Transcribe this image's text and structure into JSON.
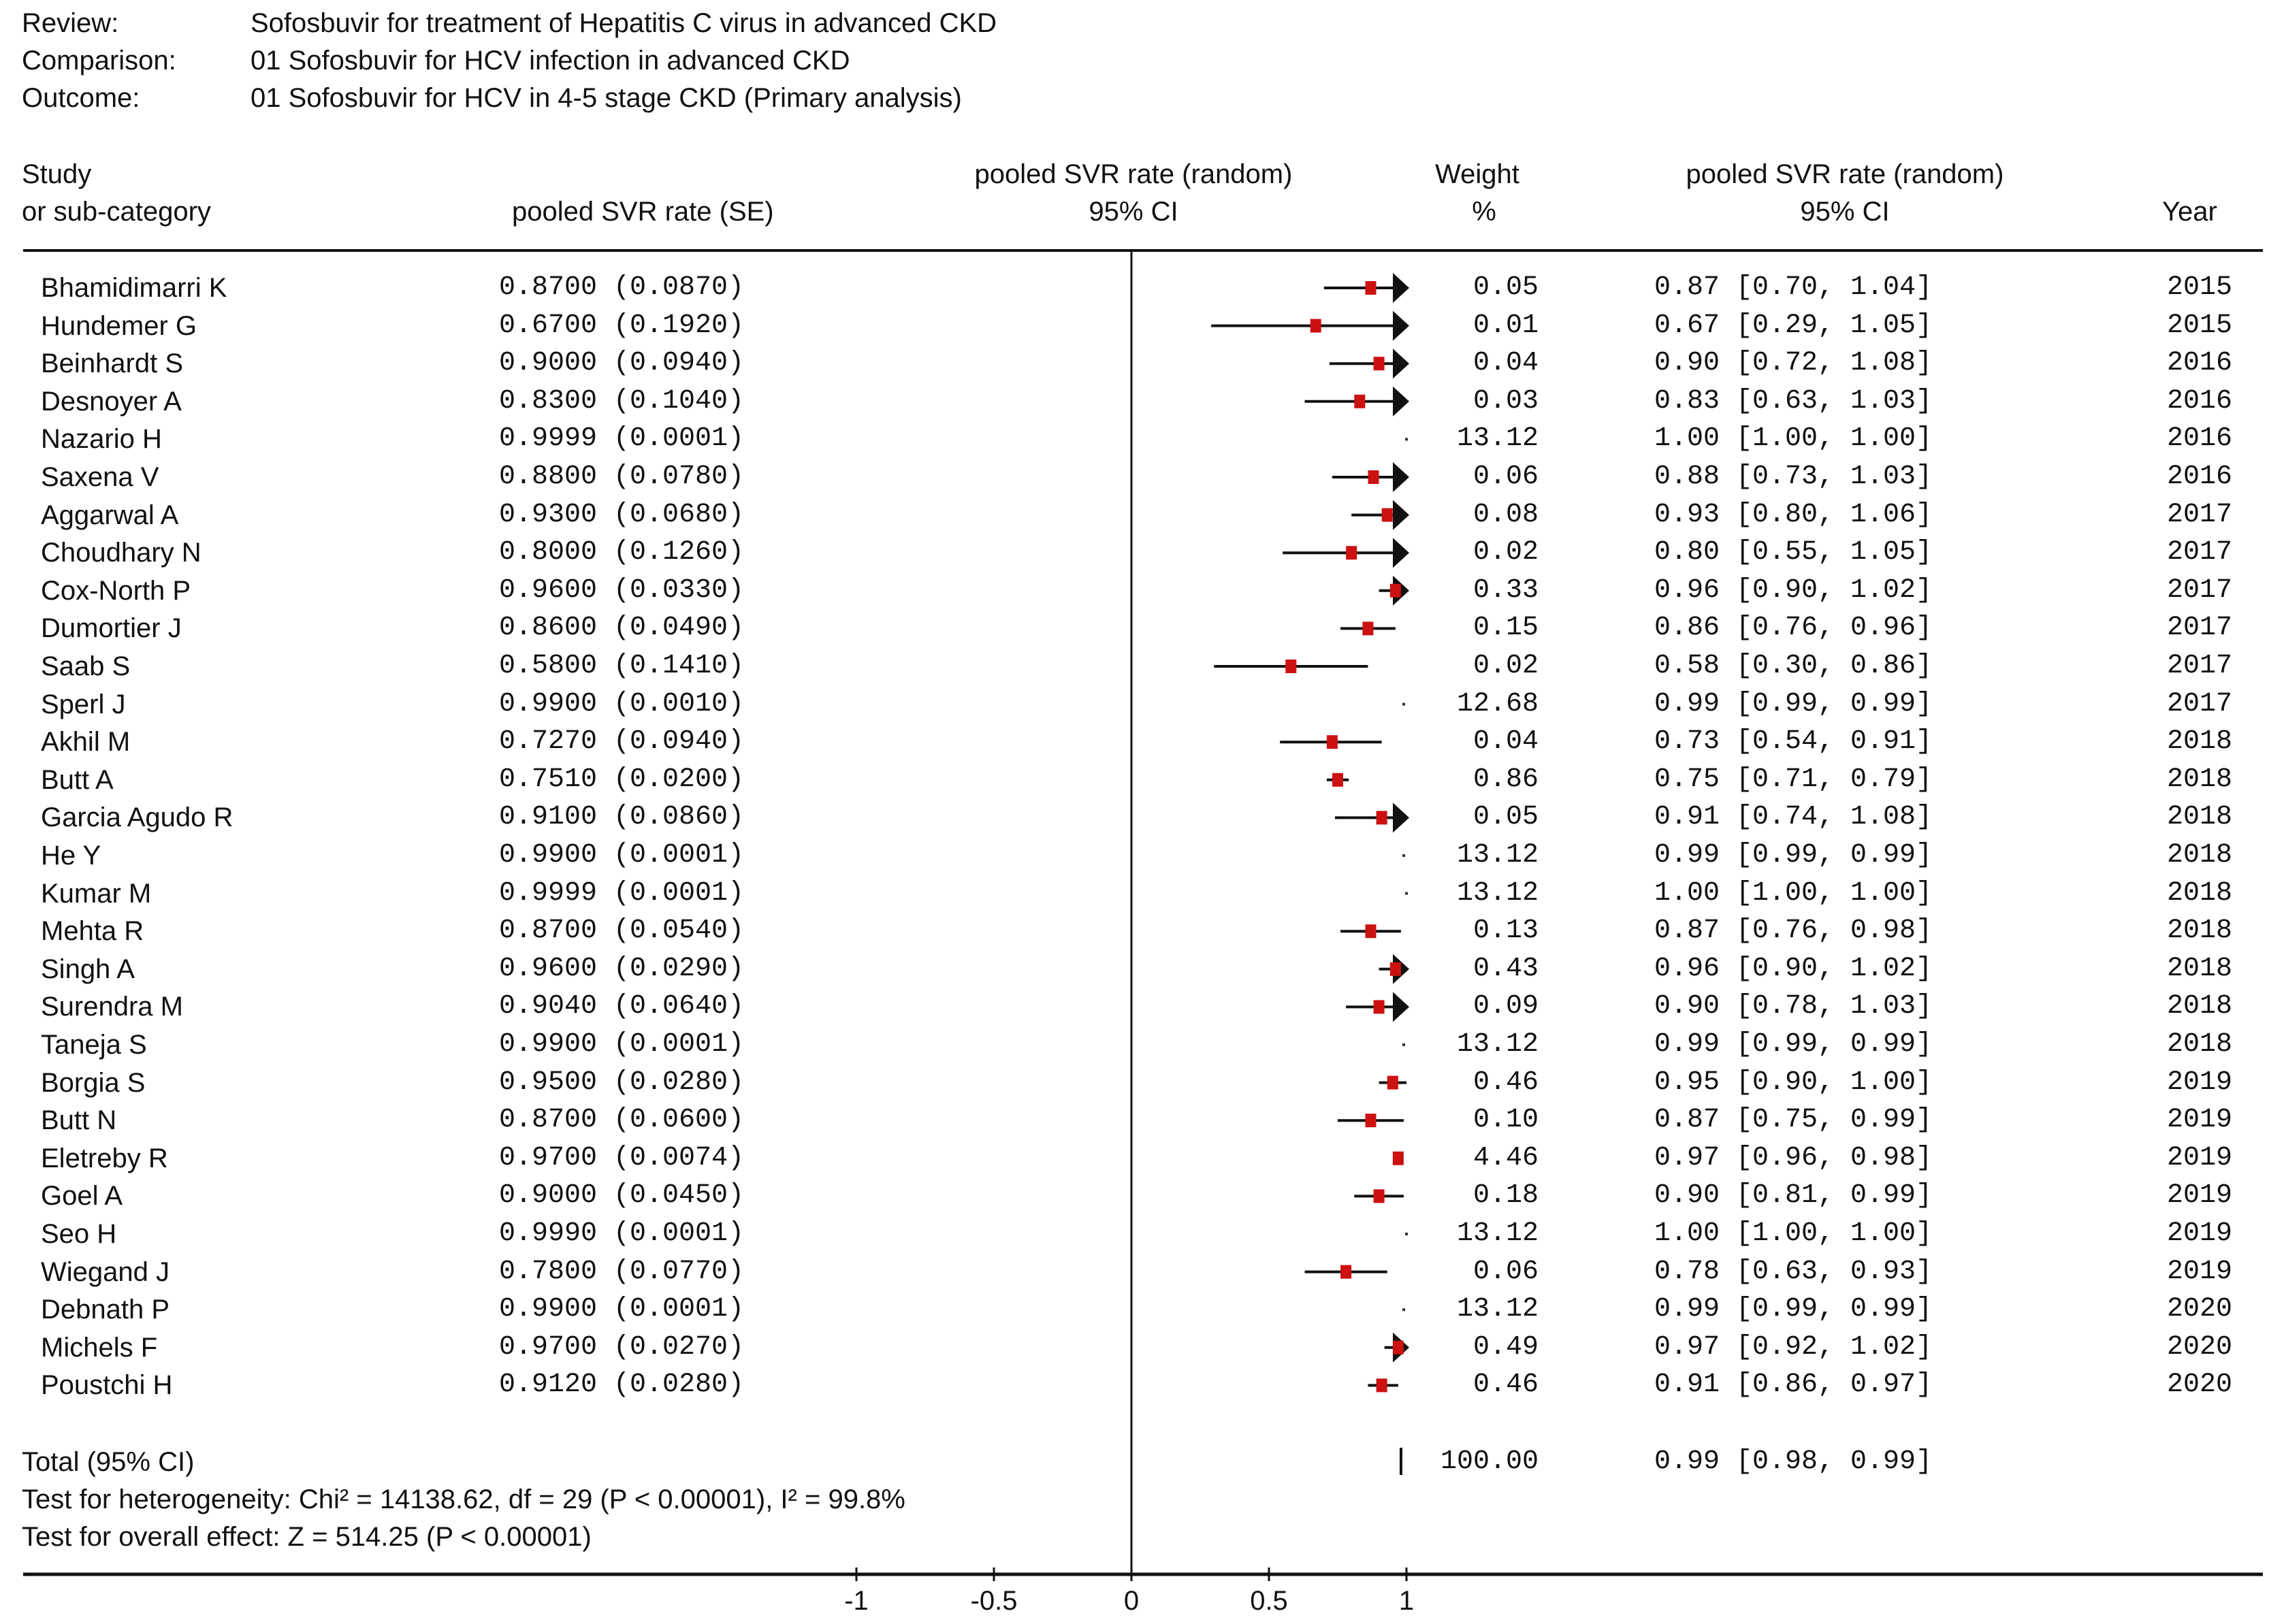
{
  "header": {
    "review_label": "Review:",
    "review": "Sofosbuvir for treatment of Hepatitis C virus in advanced CKD",
    "comparison_label": "Comparison:",
    "comparison": "01 Sofosbuvir for HCV infection in advanced CKD",
    "outcome_label": "Outcome:",
    "outcome": "01 Sofosbuvir for HCV in 4-5 stage CKD (Primary analysis)"
  },
  "columns": {
    "study1": "Study",
    "study2": "or sub-category",
    "se": "pooled SVR rate (SE)",
    "plot1": "pooled SVR rate (random)",
    "plot2": "95% CI",
    "weight1": "Weight",
    "weight2": "%",
    "ci1": "pooled SVR rate (random)",
    "ci2": "95% CI",
    "year": "Year"
  },
  "chart_data": {
    "type": "forest",
    "xlim": [
      -1,
      1
    ],
    "x_ticks": [
      "-1",
      "-0.5",
      "0",
      "0.5",
      "1"
    ],
    "x_tick_values": [
      -1,
      -0.5,
      0,
      0.5,
      1
    ],
    "studies": [
      {
        "name": "Bhamidimarri K",
        "se_text": "0.8700  (0.0870)",
        "est": 0.87,
        "lo": 0.7,
        "hi": 1.04,
        "weight": "0.05",
        "ci_text": "0.87 [0.70, 1.04]",
        "year": "2015"
      },
      {
        "name": "Hundemer G",
        "se_text": "0.6700  (0.1920)",
        "est": 0.67,
        "lo": 0.29,
        "hi": 1.05,
        "weight": "0.01",
        "ci_text": "0.67 [0.29, 1.05]",
        "year": "2015"
      },
      {
        "name": "Beinhardt S",
        "se_text": "0.9000  (0.0940)",
        "est": 0.9,
        "lo": 0.72,
        "hi": 1.08,
        "weight": "0.04",
        "ci_text": "0.90 [0.72, 1.08]",
        "year": "2016"
      },
      {
        "name": "Desnoyer A",
        "se_text": "0.8300  (0.1040)",
        "est": 0.83,
        "lo": 0.63,
        "hi": 1.03,
        "weight": "0.03",
        "ci_text": "0.83 [0.63, 1.03]",
        "year": "2016"
      },
      {
        "name": "Nazario H",
        "se_text": "0.9999  (0.0001)",
        "est": 1.0,
        "lo": 1.0,
        "hi": 1.0,
        "weight": "13.12",
        "ci_text": "1.00 [1.00, 1.00]",
        "year": "2016"
      },
      {
        "name": "Saxena V",
        "se_text": "0.8800  (0.0780)",
        "est": 0.88,
        "lo": 0.73,
        "hi": 1.03,
        "weight": "0.06",
        "ci_text": "0.88 [0.73, 1.03]",
        "year": "2016"
      },
      {
        "name": "Aggarwal A",
        "se_text": "0.9300  (0.0680)",
        "est": 0.93,
        "lo": 0.8,
        "hi": 1.06,
        "weight": "0.08",
        "ci_text": "0.93 [0.80, 1.06]",
        "year": "2017"
      },
      {
        "name": "Choudhary N",
        "se_text": "0.8000  (0.1260)",
        "est": 0.8,
        "lo": 0.55,
        "hi": 1.05,
        "weight": "0.02",
        "ci_text": "0.80 [0.55, 1.05]",
        "year": "2017"
      },
      {
        "name": "Cox-North P",
        "se_text": "0.9600  (0.0330)",
        "est": 0.96,
        "lo": 0.9,
        "hi": 1.02,
        "weight": "0.33",
        "ci_text": "0.96 [0.90, 1.02]",
        "year": "2017"
      },
      {
        "name": "Dumortier J",
        "se_text": "0.8600  (0.0490)",
        "est": 0.86,
        "lo": 0.76,
        "hi": 0.96,
        "weight": "0.15",
        "ci_text": "0.86 [0.76, 0.96]",
        "year": "2017"
      },
      {
        "name": "Saab S",
        "se_text": "0.5800  (0.1410)",
        "est": 0.58,
        "lo": 0.3,
        "hi": 0.86,
        "weight": "0.02",
        "ci_text": "0.58 [0.30, 0.86]",
        "year": "2017"
      },
      {
        "name": "Sperl J",
        "se_text": "0.9900  (0.0010)",
        "est": 0.99,
        "lo": 0.99,
        "hi": 0.99,
        "weight": "12.68",
        "ci_text": "0.99 [0.99, 0.99]",
        "year": "2017"
      },
      {
        "name": "Akhil M",
        "se_text": "0.7270  (0.0940)",
        "est": 0.73,
        "lo": 0.54,
        "hi": 0.91,
        "weight": "0.04",
        "ci_text": "0.73 [0.54, 0.91]",
        "year": "2018"
      },
      {
        "name": "Butt A",
        "se_text": "0.7510  (0.0200)",
        "est": 0.75,
        "lo": 0.71,
        "hi": 0.79,
        "weight": "0.86",
        "ci_text": "0.75 [0.71, 0.79]",
        "year": "2018"
      },
      {
        "name": "Garcia Agudo R",
        "se_text": "0.9100  (0.0860)",
        "est": 0.91,
        "lo": 0.74,
        "hi": 1.08,
        "weight": "0.05",
        "ci_text": "0.91 [0.74, 1.08]",
        "year": "2018"
      },
      {
        "name": "He Y",
        "se_text": "0.9900  (0.0001)",
        "est": 0.99,
        "lo": 0.99,
        "hi": 0.99,
        "weight": "13.12",
        "ci_text": "0.99 [0.99, 0.99]",
        "year": "2018"
      },
      {
        "name": "Kumar M",
        "se_text": "0.9999  (0.0001)",
        "est": 1.0,
        "lo": 1.0,
        "hi": 1.0,
        "weight": "13.12",
        "ci_text": "1.00 [1.00, 1.00]",
        "year": "2018"
      },
      {
        "name": "Mehta R",
        "se_text": "0.8700  (0.0540)",
        "est": 0.87,
        "lo": 0.76,
        "hi": 0.98,
        "weight": "0.13",
        "ci_text": "0.87 [0.76, 0.98]",
        "year": "2018"
      },
      {
        "name": "Singh A",
        "se_text": "0.9600  (0.0290)",
        "est": 0.96,
        "lo": 0.9,
        "hi": 1.02,
        "weight": "0.43",
        "ci_text": "0.96 [0.90, 1.02]",
        "year": "2018"
      },
      {
        "name": "Surendra M",
        "se_text": "0.9040  (0.0640)",
        "est": 0.9,
        "lo": 0.78,
        "hi": 1.03,
        "weight": "0.09",
        "ci_text": "0.90 [0.78, 1.03]",
        "year": "2018"
      },
      {
        "name": "Taneja S",
        "se_text": "0.9900  (0.0001)",
        "est": 0.99,
        "lo": 0.99,
        "hi": 0.99,
        "weight": "13.12",
        "ci_text": "0.99 [0.99, 0.99]",
        "year": "2018"
      },
      {
        "name": "Borgia S",
        "se_text": "0.9500  (0.0280)",
        "est": 0.95,
        "lo": 0.9,
        "hi": 1.0,
        "weight": "0.46",
        "ci_text": "0.95 [0.90, 1.00]",
        "year": "2019"
      },
      {
        "name": "Butt N",
        "se_text": "0.8700  (0.0600)",
        "est": 0.87,
        "lo": 0.75,
        "hi": 0.99,
        "weight": "0.10",
        "ci_text": "0.87 [0.75, 0.99]",
        "year": "2019"
      },
      {
        "name": "Eletreby R",
        "se_text": "0.9700  (0.0074)",
        "est": 0.97,
        "lo": 0.96,
        "hi": 0.98,
        "weight": "4.46",
        "ci_text": "0.97 [0.96, 0.98]",
        "year": "2019"
      },
      {
        "name": "Goel A",
        "se_text": "0.9000  (0.0450)",
        "est": 0.9,
        "lo": 0.81,
        "hi": 0.99,
        "weight": "0.18",
        "ci_text": "0.90 [0.81, 0.99]",
        "year": "2019"
      },
      {
        "name": "Seo H",
        "se_text": "0.9990  (0.0001)",
        "est": 1.0,
        "lo": 1.0,
        "hi": 1.0,
        "weight": "13.12",
        "ci_text": "1.00 [1.00, 1.00]",
        "year": "2019"
      },
      {
        "name": "Wiegand J",
        "se_text": "0.7800  (0.0770)",
        "est": 0.78,
        "lo": 0.63,
        "hi": 0.93,
        "weight": "0.06",
        "ci_text": "0.78 [0.63, 0.93]",
        "year": "2019"
      },
      {
        "name": "Debnath P",
        "se_text": "0.9900  (0.0001)",
        "est": 0.99,
        "lo": 0.99,
        "hi": 0.99,
        "weight": "13.12",
        "ci_text": "0.99 [0.99, 0.99]",
        "year": "2020"
      },
      {
        "name": "Michels F",
        "se_text": "0.9700  (0.0270)",
        "est": 0.97,
        "lo": 0.92,
        "hi": 1.02,
        "weight": "0.49",
        "ci_text": "0.97 [0.92, 1.02]",
        "year": "2020"
      },
      {
        "name": "Poustchi H",
        "se_text": "0.9120  (0.0280)",
        "est": 0.91,
        "lo": 0.86,
        "hi": 0.97,
        "weight": "0.46",
        "ci_text": "0.91 [0.86, 0.97]",
        "year": "2020"
      }
    ],
    "total": {
      "label": "Total (95% CI)",
      "est": 0.99,
      "lo": 0.98,
      "hi": 0.99,
      "weight": "100.00",
      "ci_text": "0.99 [0.98, 0.99]"
    },
    "heterogeneity": "Test for heterogeneity: Chi² = 14138.62, df = 29 (P < 0.00001), I² = 99.8%",
    "overall_effect": "Test for overall effect: Z = 514.25 (P < 0.00001)",
    "colors": {
      "box": "#cc1111",
      "line": "#111111"
    }
  }
}
